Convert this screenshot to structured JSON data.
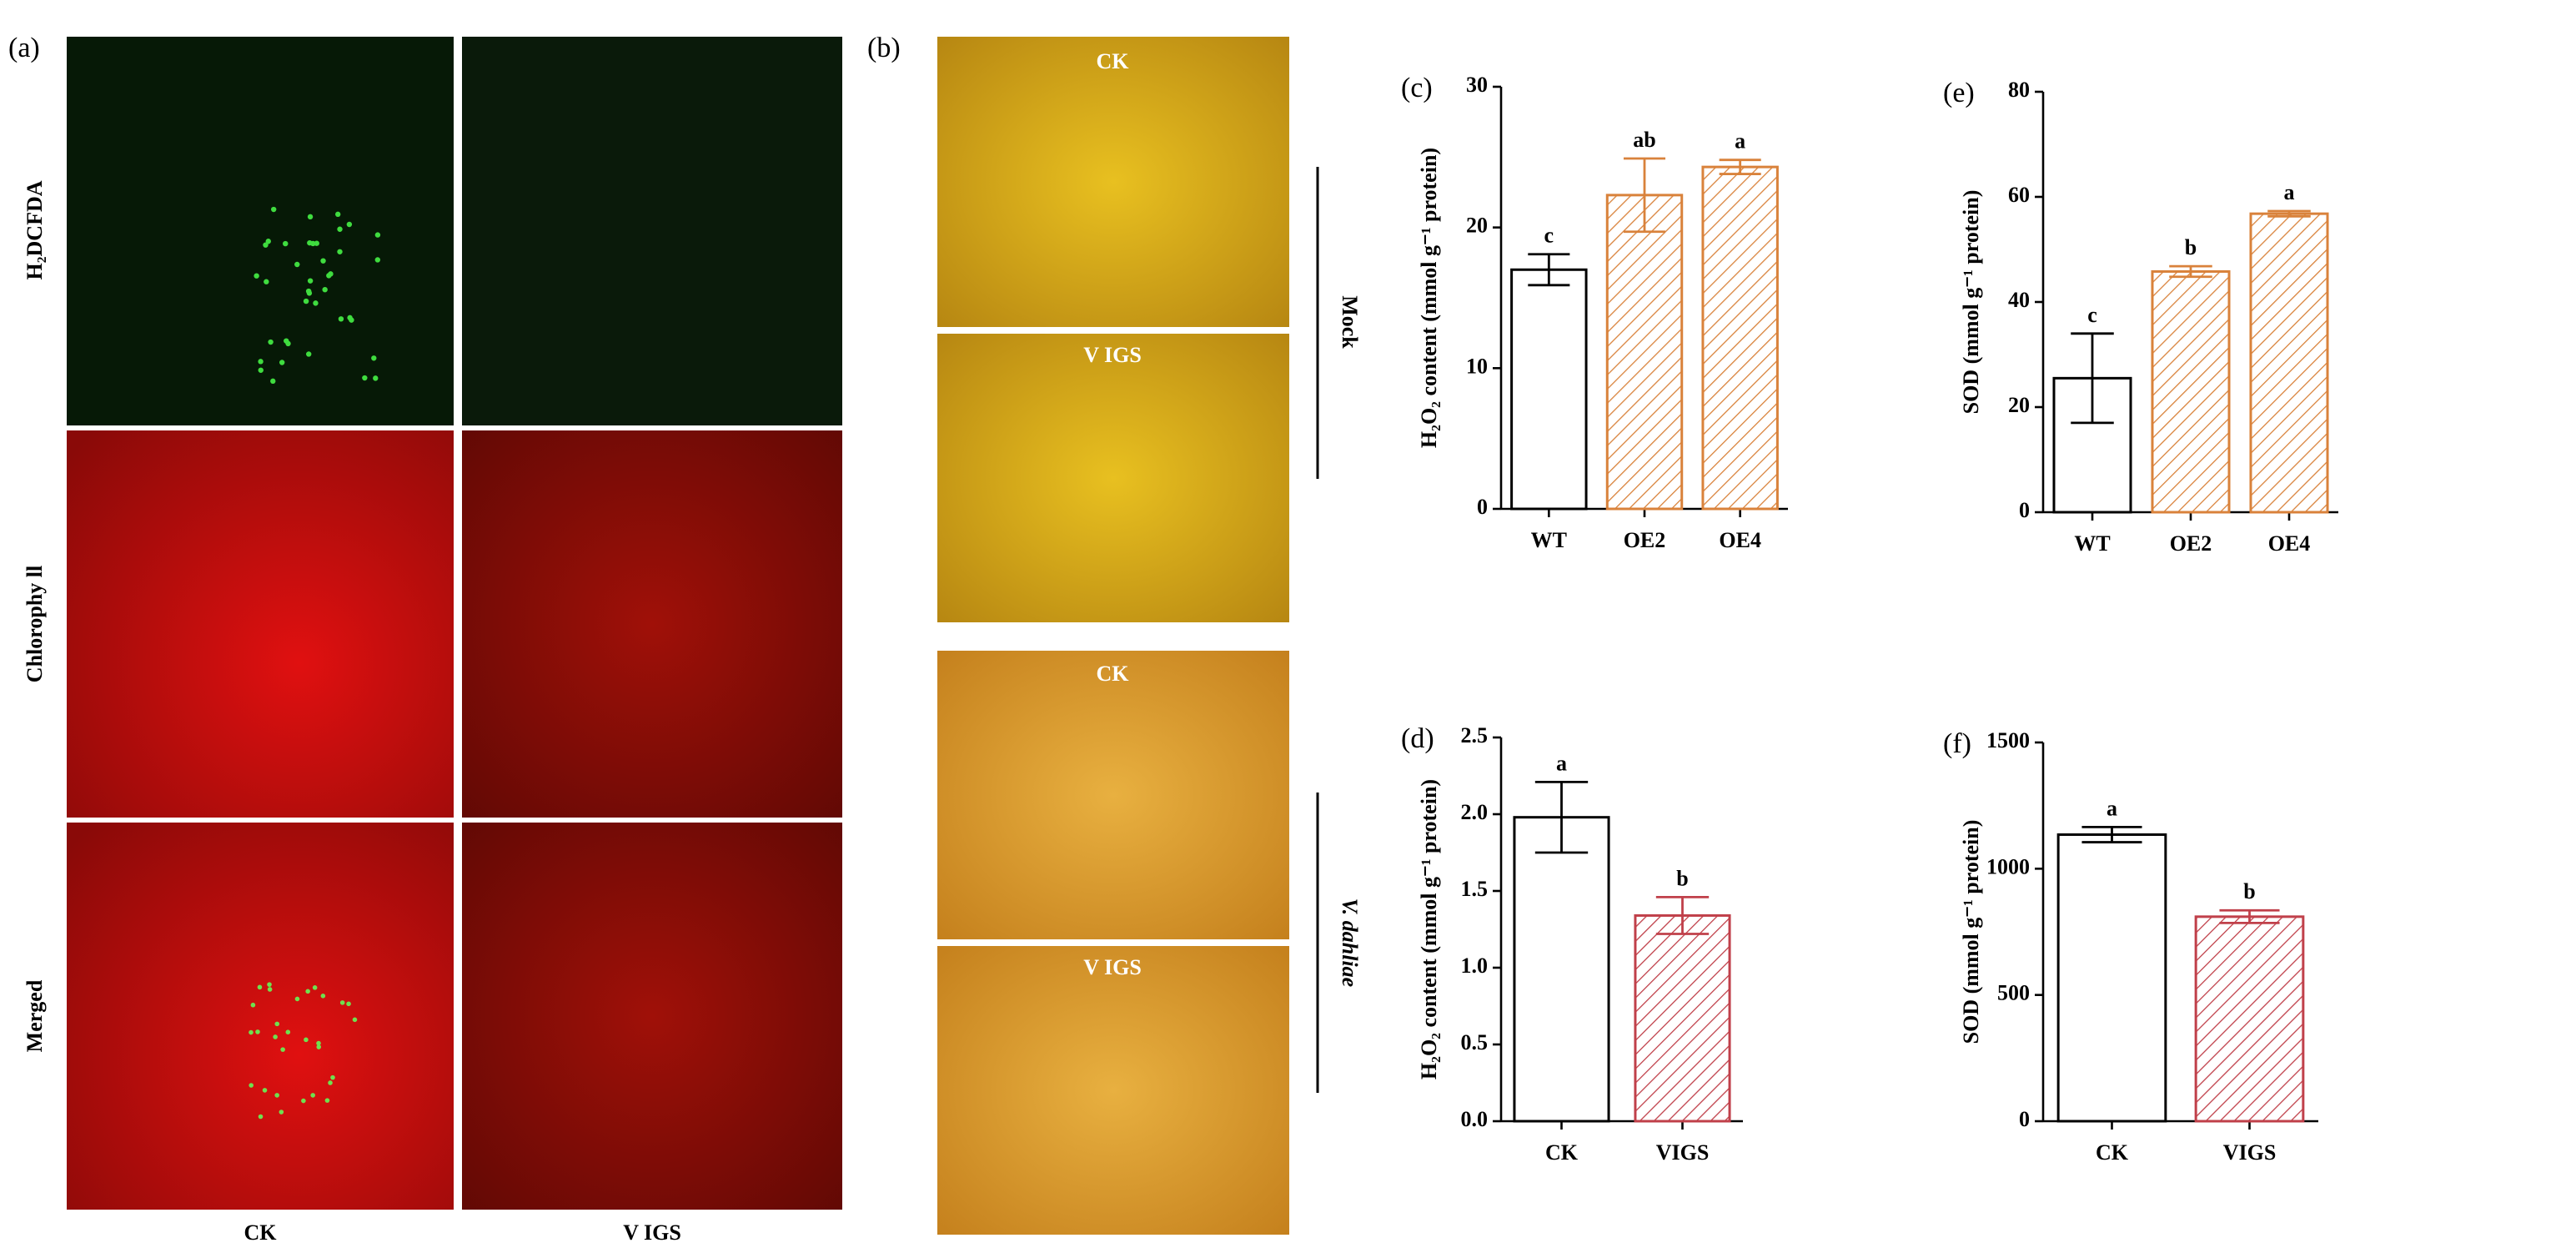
{
  "panel_a": {
    "label": "(a)",
    "rows": [
      "H₂DCFDA",
      "Chlorophy ll",
      "Merged"
    ],
    "columns": [
      "CK",
      "V IGS"
    ]
  },
  "panel_b": {
    "label": "(b)",
    "images": [
      "CK",
      "V IGS",
      "CK",
      "V IGS"
    ],
    "groups": [
      "Mock",
      "V. dahliae"
    ]
  },
  "chart_data": [
    {
      "type": "bar",
      "title": "(c)",
      "categories": [
        "WT",
        "OE2",
        "OE4"
      ],
      "values": [
        17,
        22.3,
        24.3
      ],
      "errors": [
        1.1,
        2.6,
        0.5
      ],
      "annotations": [
        "c",
        "ab",
        "a"
      ],
      "colors": [
        "#000000",
        "#d9823b",
        "#d9823b"
      ],
      "hatch": [
        false,
        true,
        true
      ],
      "ylabel": "H₂O₂ content (mmol g⁻¹ protein)",
      "ylim": [
        0,
        30
      ],
      "yticks": [
        0,
        10,
        20,
        30
      ]
    },
    {
      "type": "bar",
      "title": "(e)",
      "categories": [
        "WT",
        "OE2",
        "OE4"
      ],
      "values": [
        25.5,
        45.8,
        56.8
      ],
      "errors": [
        8.5,
        1,
        0.5
      ],
      "annotations": [
        "c",
        "b",
        "a"
      ],
      "colors": [
        "#000000",
        "#d9823b",
        "#d9823b"
      ],
      "hatch": [
        false,
        true,
        true
      ],
      "ylabel": "SOD (mmol g⁻¹ protein)",
      "ylim": [
        0,
        80
      ],
      "yticks": [
        0,
        20,
        40,
        60,
        80
      ]
    },
    {
      "type": "bar",
      "title": "(d)",
      "categories": [
        "CK",
        "VIGS"
      ],
      "values": [
        1.98,
        1.34
      ],
      "errors": [
        0.23,
        0.12
      ],
      "annotations": [
        "a",
        "b"
      ],
      "colors": [
        "#000000",
        "#c0404a"
      ],
      "hatch": [
        false,
        true
      ],
      "ylabel": "H₂O₂ content (mmol g⁻¹ protein)",
      "ylim": [
        0,
        2.5
      ],
      "yticks": [
        {
          "value": 0,
          "label": "0.0"
        },
        0.5,
        {
          "value": 1,
          "label": "1.0"
        },
        1.5,
        {
          "value": 2,
          "label": "2.0"
        },
        2.5
      ]
    },
    {
      "type": "bar",
      "title": "(f)",
      "categories": [
        "CK",
        "VIGS"
      ],
      "values": [
        1135,
        810
      ],
      "errors": [
        30,
        25
      ],
      "annotations": [
        "a",
        "b"
      ],
      "colors": [
        "#000000",
        "#c0404a"
      ],
      "hatch": [
        false,
        true
      ],
      "ylabel": "SOD (mmol g⁻¹ protein)",
      "ylim": [
        0,
        1500
      ],
      "yticks": [
        0,
        500,
        1000,
        1500
      ]
    }
  ]
}
